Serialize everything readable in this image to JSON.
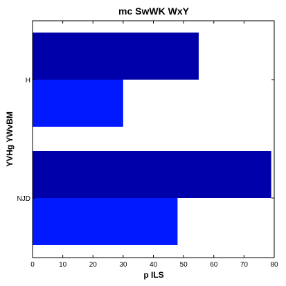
{
  "chart_data": {
    "type": "bar",
    "orientation": "horizontal",
    "title": "mc SwWK WxY",
    "xlabel": "p ILS",
    "ylabel": "YVHg YWvBM",
    "categories": [
      "H",
      "NJD"
    ],
    "series": [
      {
        "color": "#0000aa",
        "values": [
          55,
          79
        ]
      },
      {
        "color": "#0019ff",
        "values": [
          30,
          48
        ]
      }
    ],
    "xlim": [
      0,
      80
    ],
    "xticks": [
      0,
      10,
      20,
      30,
      40,
      50,
      60,
      70,
      80
    ],
    "grid": false
  }
}
